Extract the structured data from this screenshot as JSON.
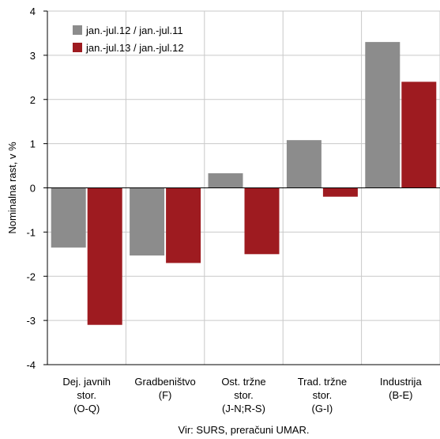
{
  "chart_data": {
    "type": "bar",
    "categories": [
      [
        "Dej. javnih",
        "stor.",
        "(O-Q)"
      ],
      [
        "Gradbeništvo",
        "(F)"
      ],
      [
        "Ost. tržne",
        "stor.",
        "(J-N;R-S)"
      ],
      [
        "Trad. tržne",
        "stor.",
        "(G-I)"
      ],
      [
        "Industrija",
        "(B-E)"
      ]
    ],
    "series": [
      {
        "name": "jan.-jul.12 / jan.-jul.11",
        "color": "#8c8c8c",
        "values": [
          -1.35,
          -1.53,
          0.33,
          1.08,
          3.3
        ]
      },
      {
        "name": "jan.-jul.13 / jan.-jul.12",
        "color": "#9e1b20",
        "values": [
          -3.1,
          -1.7,
          -1.5,
          -0.2,
          2.4
        ]
      }
    ],
    "ylabel": "Nominalna rast, v %",
    "ylim": [
      -4,
      4
    ],
    "yticks": [
      4,
      3,
      2,
      1,
      0,
      -1,
      -2,
      -3,
      -4
    ],
    "grid": true,
    "legend": "top-left",
    "source": "Vir: SURS, preračuni UMAR."
  }
}
